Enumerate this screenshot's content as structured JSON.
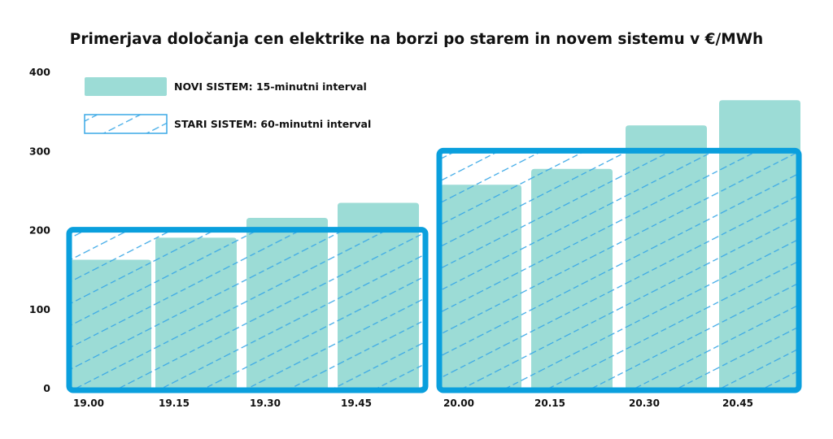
{
  "chart_data": {
    "type": "bar",
    "title": "Primerjava določanja cen elektrike na borzi po starem in novem sistemu v €/MWh",
    "xlabel": "",
    "ylabel": "",
    "ylim": [
      0,
      400
    ],
    "yticks": [
      "0",
      "100",
      "200",
      "300",
      "400"
    ],
    "grid": false,
    "legend_position": "top-left",
    "categories": [
      "19.00",
      "19.15",
      "19.30",
      "19.45",
      "20.00",
      "20.15",
      "20.30",
      "20.45"
    ],
    "series": [
      {
        "name": "NOVI SISTEM: 15-minutni interval",
        "style": "solid",
        "color": "#9cdcd6",
        "values": [
          162,
          190,
          215,
          234,
          257,
          277,
          332,
          364
        ]
      },
      {
        "name": "STARI SISTEM: 60-minutni interval",
        "style": "hatched",
        "color": "#0a9fdd",
        "groups": [
          {
            "categories": [
              "19.00",
              "19.15",
              "19.30",
              "19.45"
            ],
            "value": 200
          },
          {
            "categories": [
              "20.00",
              "20.15",
              "20.30",
              "20.45"
            ],
            "value": 300
          }
        ]
      }
    ]
  }
}
